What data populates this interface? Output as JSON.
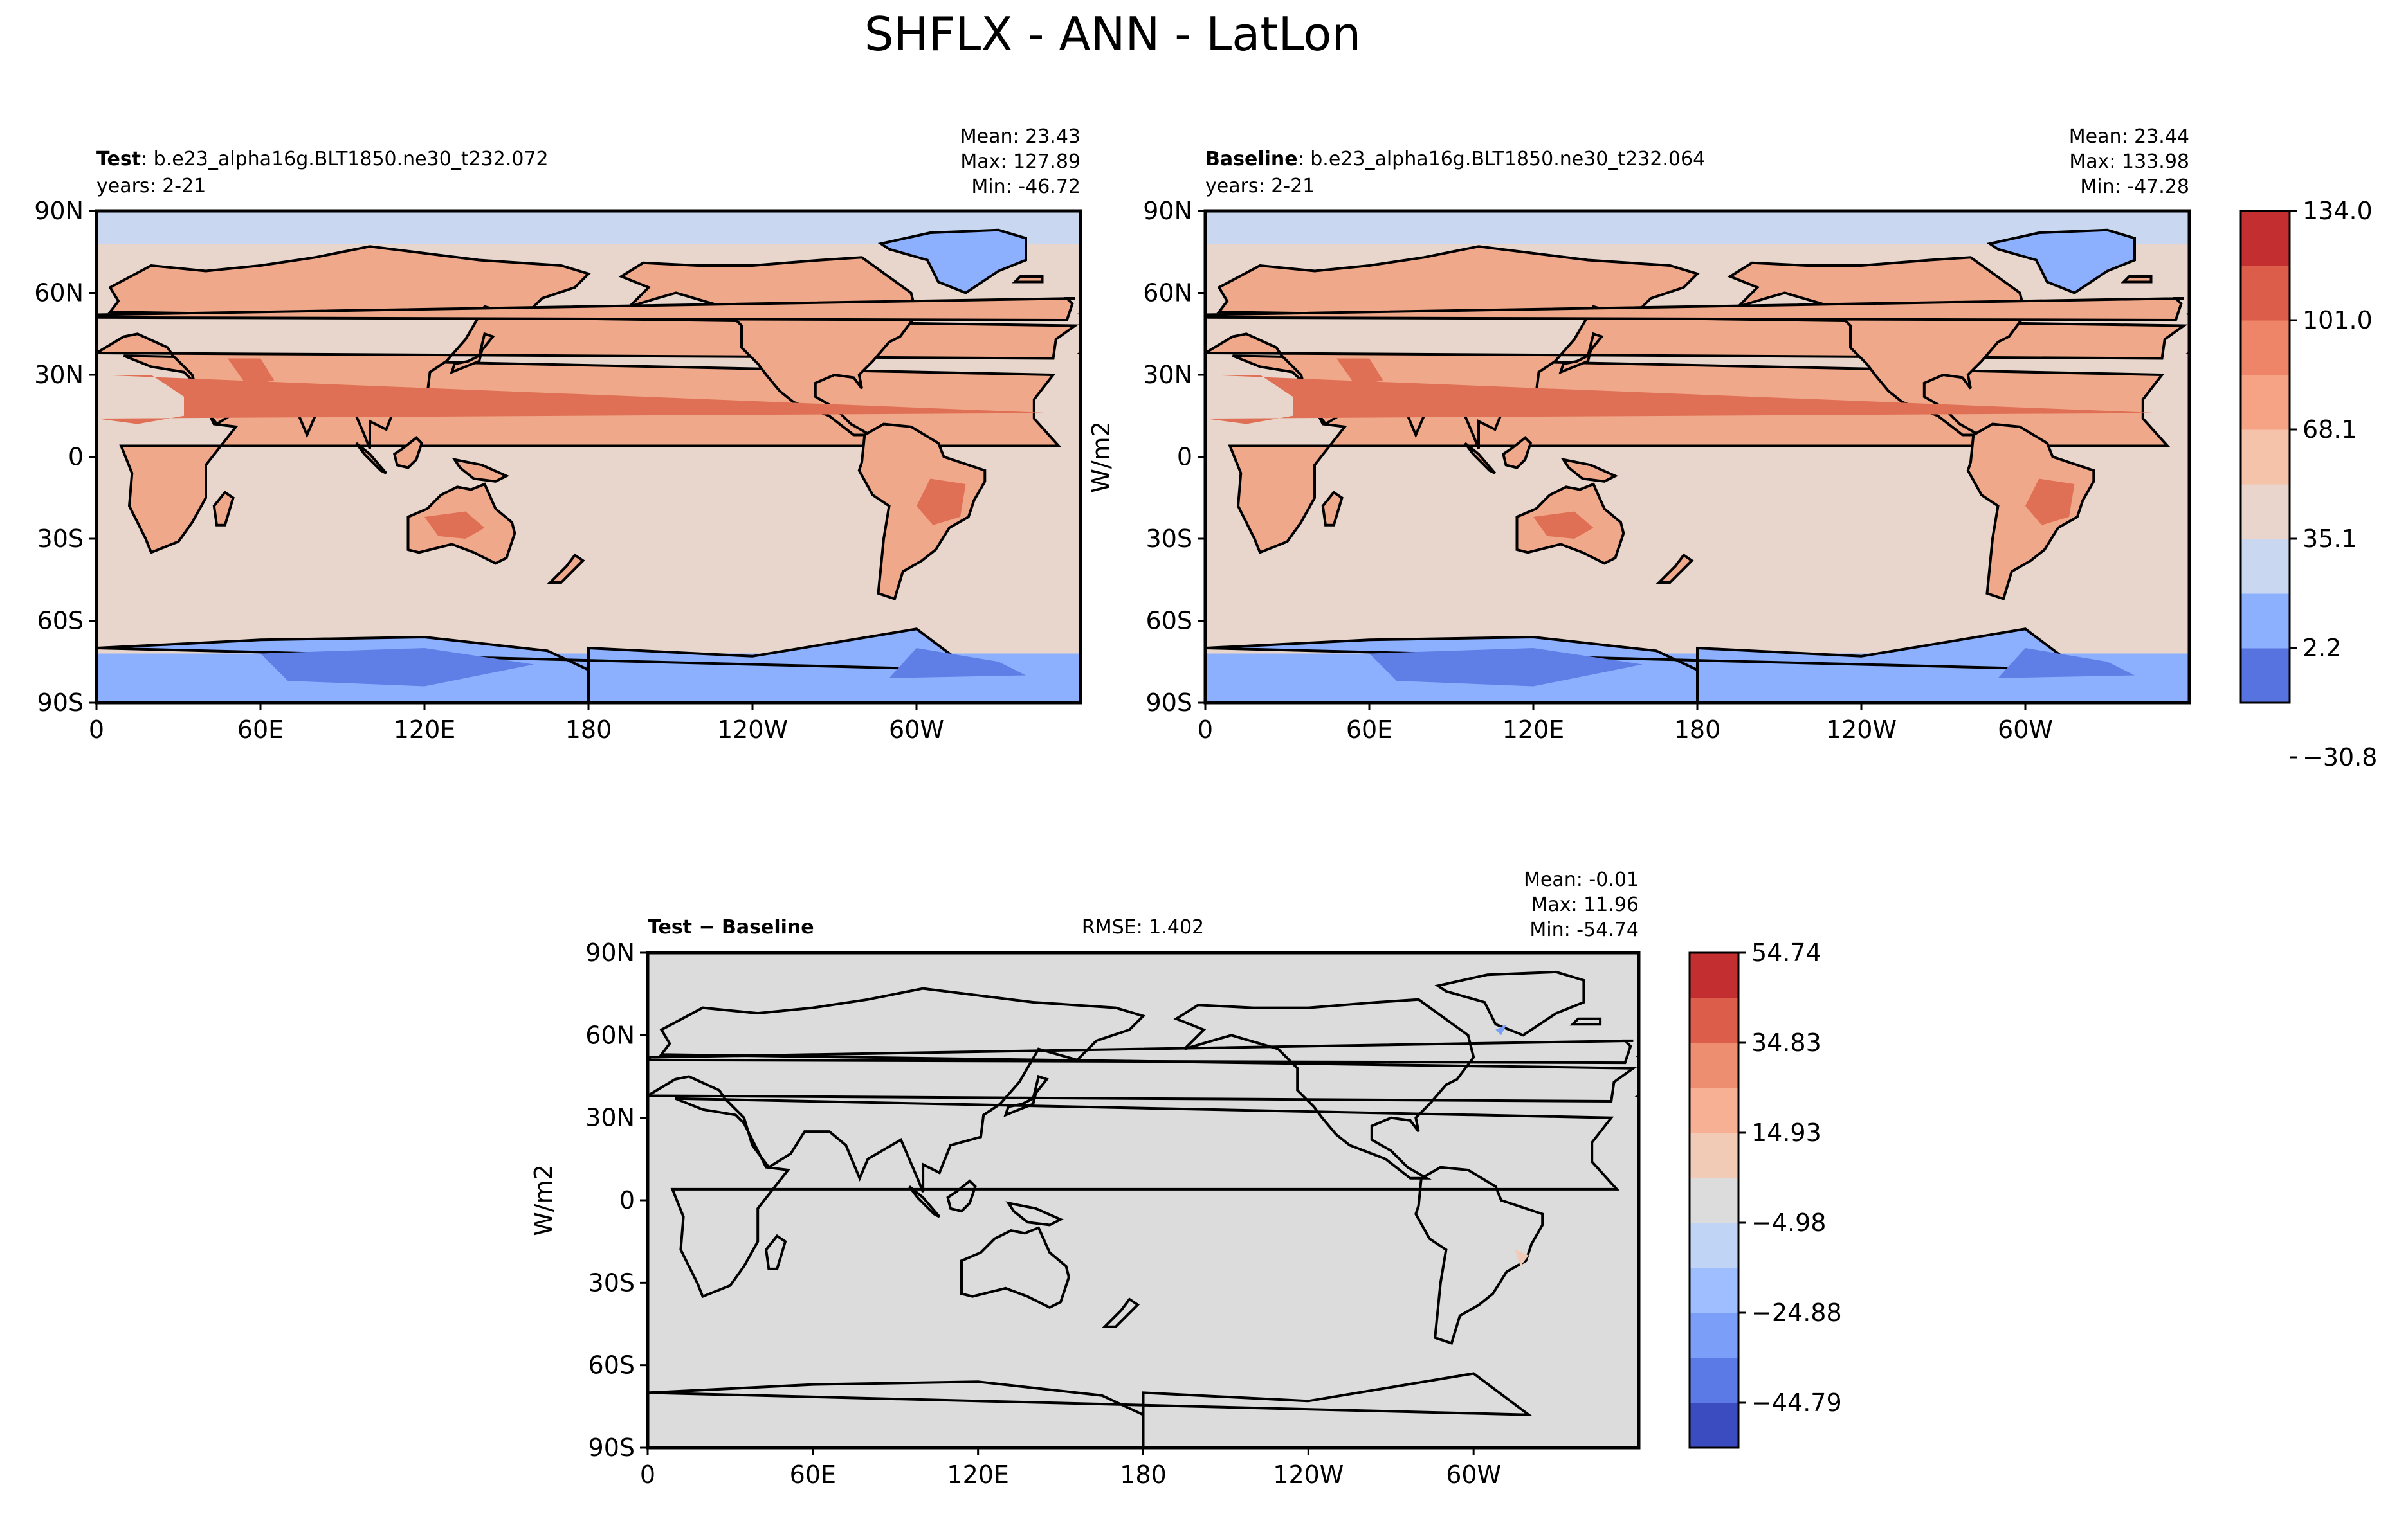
{
  "figure": {
    "title": "SHFLX - ANN - LatLon"
  },
  "chart_data": [
    {
      "type": "heatmap",
      "panel": "test",
      "label_bold": "Test",
      "label_rest": ": b.e23_alpha16g.BLT1850.ne30_t232.072",
      "years": "years: 2-21",
      "stats": [
        "Mean: 23.43",
        "Max: 127.89",
        "Min: -46.72"
      ],
      "xticks": [
        "0",
        "60E",
        "120E",
        "180",
        "120W",
        "60W"
      ],
      "yticks": [
        "90N",
        "60N",
        "30N",
        "0",
        "30S",
        "60S",
        "90S"
      ],
      "xlim": [
        0,
        360
      ],
      "ylim": [
        -90,
        90
      ],
      "ylabel": ""
    },
    {
      "type": "heatmap",
      "panel": "baseline",
      "label_bold": "Baseline",
      "label_rest": ": b.e23_alpha16g.BLT1850.ne30_t232.064",
      "years": "years: 2-21",
      "stats": [
        "Mean: 23.44",
        "Max: 133.98",
        "Min: -47.28"
      ],
      "xticks": [
        "0",
        "60E",
        "120E",
        "180",
        "120W",
        "60W"
      ],
      "yticks": [
        "90N",
        "60N",
        "30N",
        "0",
        "30S",
        "60S",
        "90S"
      ],
      "xlim": [
        0,
        360
      ],
      "ylim": [
        -90,
        90
      ],
      "ylabel": "W/m2",
      "colorbar": {
        "ticks": [
          "134.0",
          "101.0",
          "68.1",
          "35.1",
          "2.2",
          "−30.8"
        ],
        "colors": [
          "#5673e0",
          "#8db0fe",
          "#c9d7f0",
          "#e9d5cb",
          "#f5c2aa",
          "#f6a385",
          "#ee8468",
          "#dc5d4a",
          "#c32e31"
        ]
      }
    },
    {
      "type": "heatmap",
      "panel": "difference",
      "label_bold": "Test − Baseline",
      "rmse": "RMSE: 1.402",
      "stats": [
        "Mean: -0.01",
        "Max: 11.96",
        "Min: -54.74"
      ],
      "xticks": [
        "0",
        "60E",
        "120E",
        "180",
        "120W",
        "60W"
      ],
      "yticks": [
        "90N",
        "60N",
        "30N",
        "0",
        "30S",
        "60S",
        "90S"
      ],
      "xlim": [
        0,
        360
      ],
      "ylim": [
        -90,
        90
      ],
      "ylabel": "W/m2",
      "colorbar": {
        "ticks": [
          "54.74",
          "34.83",
          "14.93",
          "−4.98",
          "−24.88",
          "−44.79"
        ],
        "colors": [
          "#3b4cc0",
          "#5b7ae5",
          "#7b9ff9",
          "#9ebeff",
          "#c0d4f5",
          "#dcdcdc",
          "#f2cbb7",
          "#f7b093",
          "#ec8e6f",
          "#dc5d4a",
          "#c32e31"
        ]
      }
    }
  ],
  "colors": {
    "land_warm": "#f0a88a",
    "ocean_neutral": "#e8d6cc",
    "cold": "#8db0fe",
    "arctic_ocean": "#c9d7f0",
    "diff_background": "#dcdcdc",
    "coast": "#000000"
  }
}
